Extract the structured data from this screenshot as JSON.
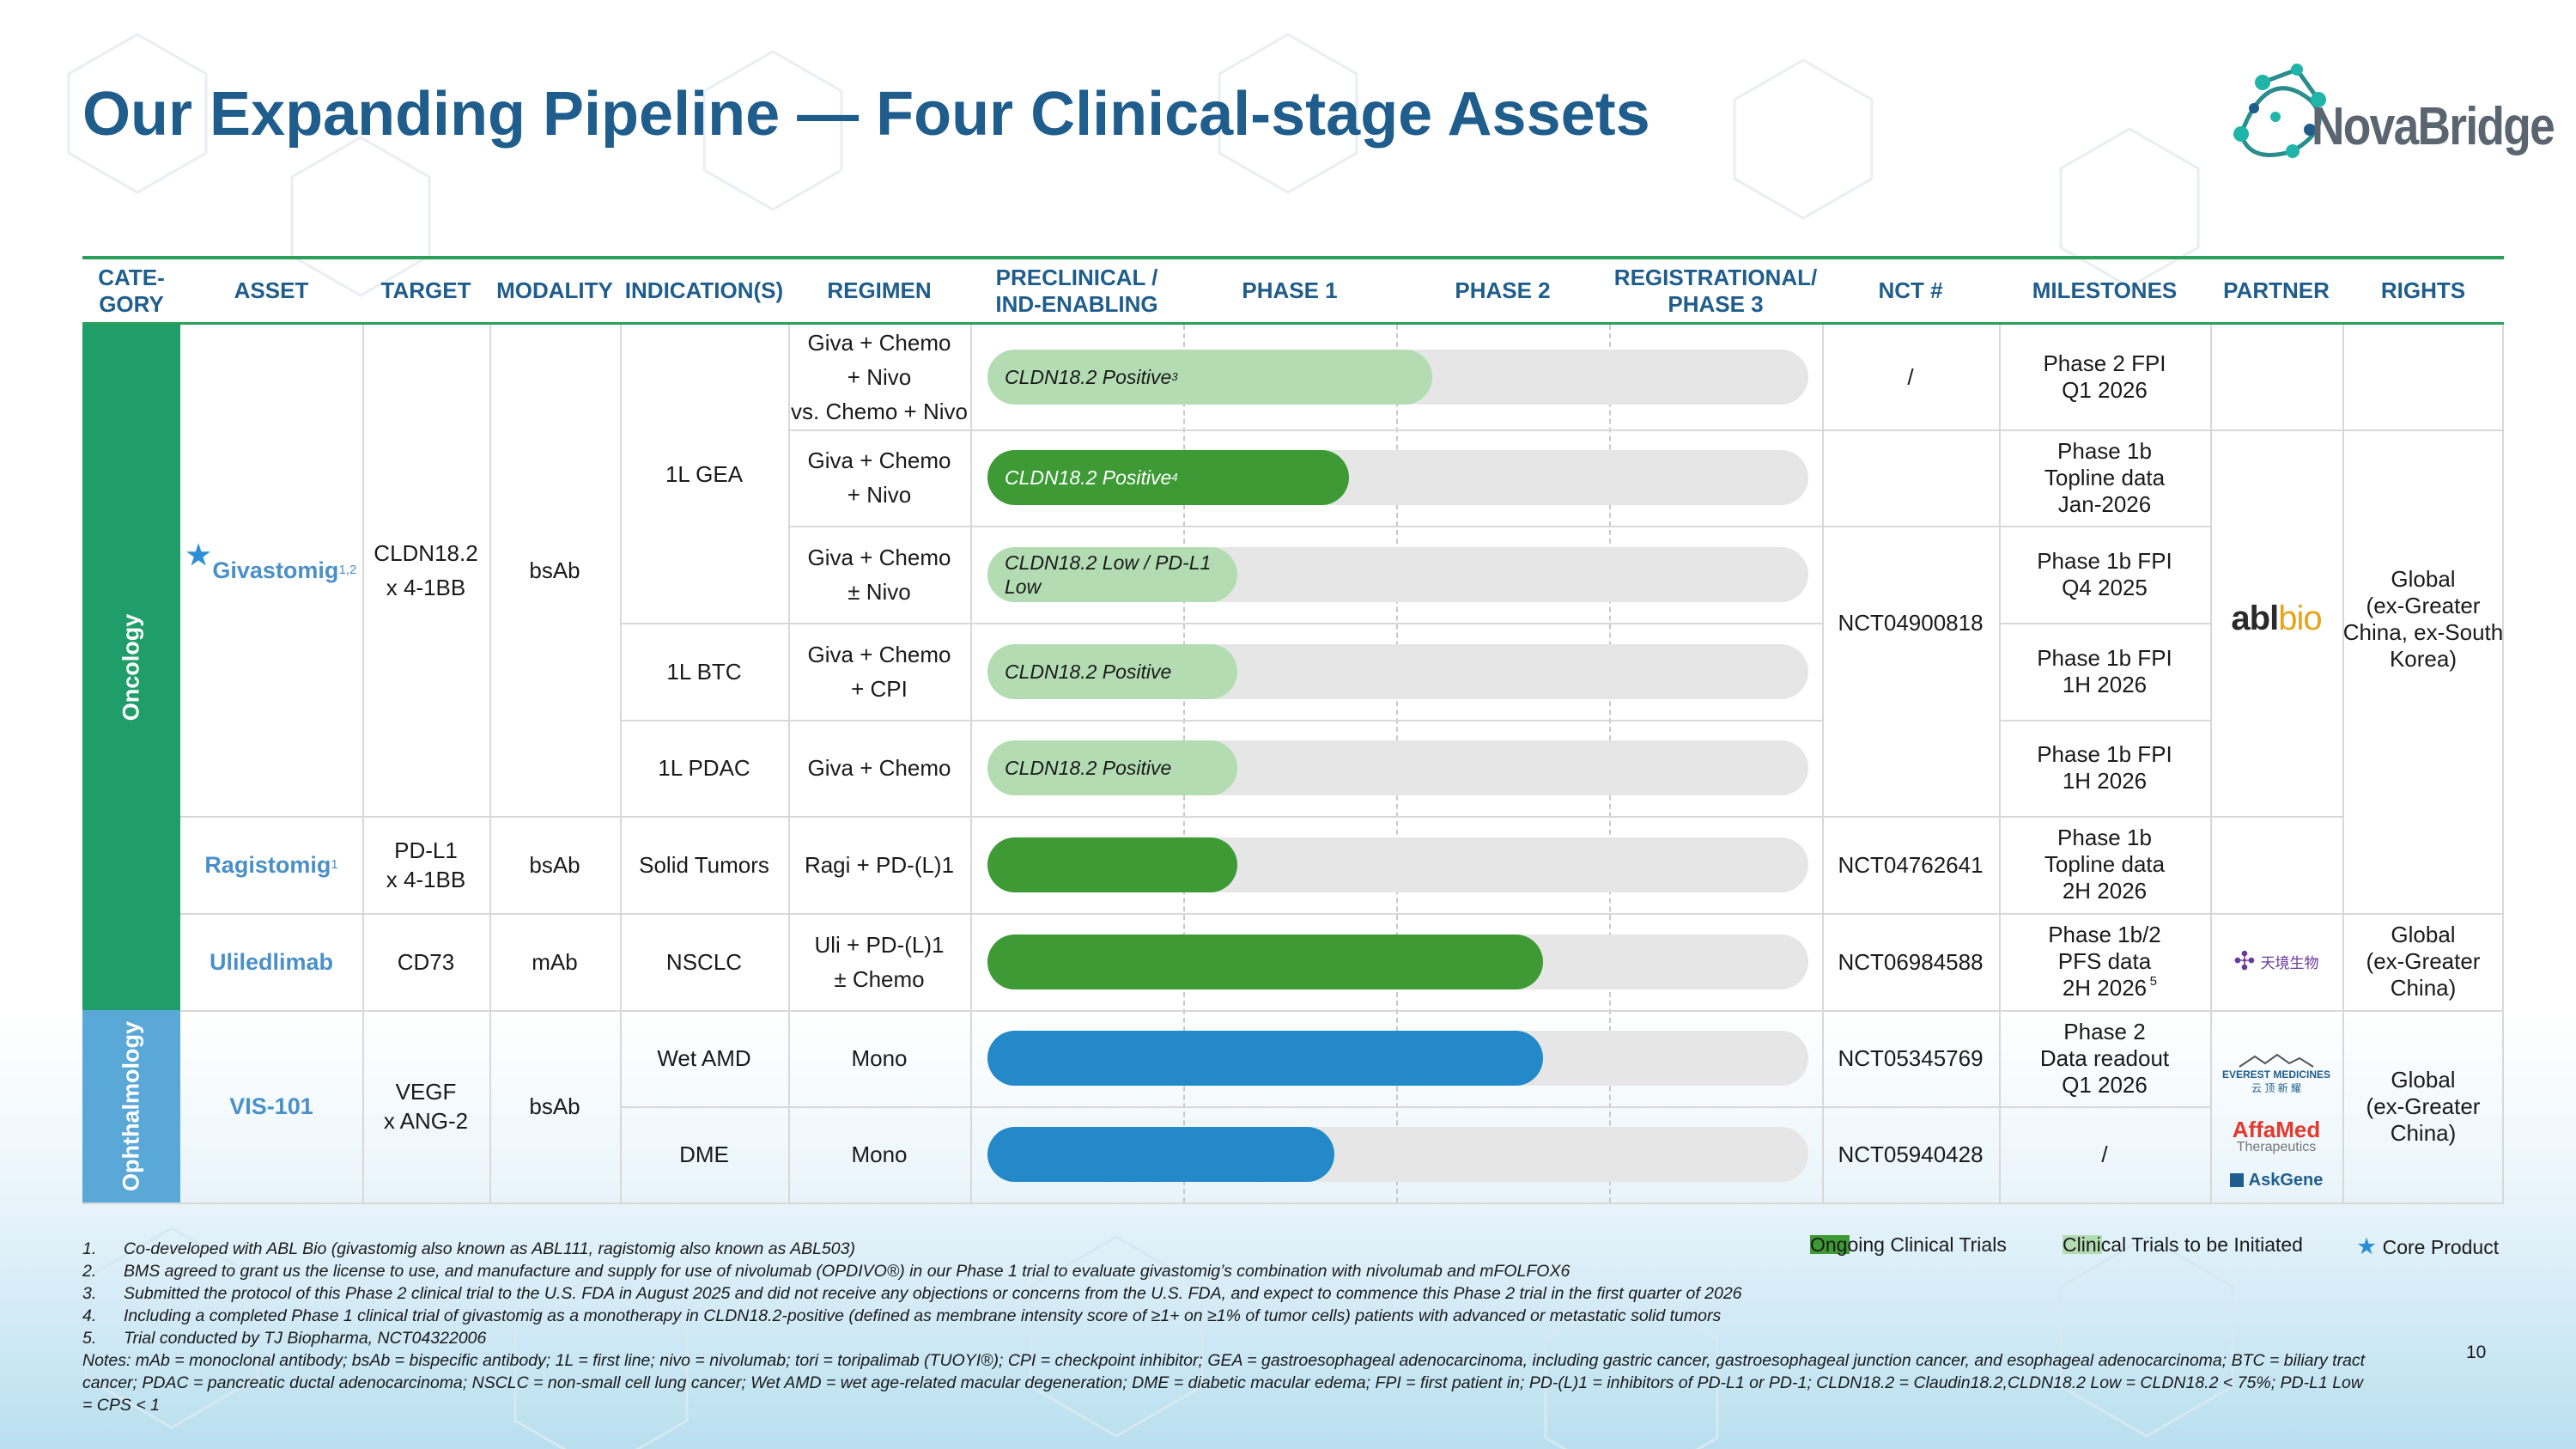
{
  "title": "Our Expanding Pipeline — Four Clinical-stage Assets",
  "logo": {
    "text": "NovaBridge"
  },
  "headers": {
    "category": "CATE-\nGORY",
    "asset": "ASSET",
    "target": "TARGET",
    "modality": "MODALITY",
    "indication": "INDICATION(S)",
    "regimen": "REGIMEN",
    "preclinical": "PRECLINICAL /\nIND-ENABLING",
    "phase1": "PHASE 1",
    "phase2": "PHASE 2",
    "phase3": "REGISTRATIONAL/\nPHASE 3",
    "nct": "NCT #",
    "milestones": "MILESTONES",
    "partner": "PARTNER",
    "rights": "RIGHTS"
  },
  "categories": {
    "oncology": "Oncology",
    "ophthalmology": "Ophthalmology"
  },
  "assets": {
    "givastomig": {
      "name": "Givastomig",
      "sup": "1,2",
      "target": "CLDN18.2\nx 4-1BB",
      "modality": "bsAb"
    },
    "ragistomig": {
      "name": "Ragistomig",
      "sup": "1",
      "target": "PD-L1\nx 4-1BB",
      "modality": "bsAb"
    },
    "uliledlimab": {
      "name": "Uliledlimab",
      "target": "CD73",
      "modality": "mAb"
    },
    "vis101": {
      "name": "VIS-101",
      "target": "VEGF\nx ANG-2",
      "modality": "bsAb"
    }
  },
  "indications": {
    "gea": "1L GEA",
    "btc": "1L BTC",
    "pdac": "1L PDAC",
    "solid": "Solid Tumors",
    "nsclc": "NSCLC",
    "wetamd": "Wet AMD",
    "dme": "DME"
  },
  "rows": [
    {
      "regimen": "Giva + Chemo\n+ Nivo\nvs. Chemo + Nivo",
      "bar_label": "CLDN18.2 Positive",
      "bar_sup": "3",
      "style": "light",
      "progress": 0.32,
      "milestone": "Phase 2 FPI\nQ1 2026"
    },
    {
      "regimen": "Giva + Chemo\n+ Nivo",
      "bar_label": "CLDN18.2 Positive",
      "bar_sup": "4",
      "style": "dark",
      "progress": 0.26,
      "milestone": "Phase 1b\nTopline data\nJan-2026"
    },
    {
      "regimen": "Giva + Chemo\n± Nivo",
      "bar_label": "CLDN18.2 Low / PD-L1\nLow",
      "bar_sup": "",
      "style": "light",
      "progress": 0.18,
      "milestone": "Phase 1b FPI\nQ4 2025"
    },
    {
      "regimen": "Giva + Chemo\n+ CPI",
      "bar_label": "CLDN18.2 Positive",
      "bar_sup": "",
      "style": "light",
      "progress": 0.18,
      "milestone": "Phase 1b FPI\n1H 2026"
    },
    {
      "regimen": "Giva + Chemo",
      "bar_label": "CLDN18.2 Positive",
      "bar_sup": "",
      "style": "light",
      "progress": 0.18,
      "milestone": "Phase 1b FPI\n1H 2026"
    },
    {
      "regimen": "Ragi + PD-(L)1",
      "bar_label": "",
      "bar_sup": "",
      "style": "dark",
      "progress": 0.18,
      "milestone": "Phase 1b\nTopline data\n2H 2026"
    },
    {
      "regimen": "Uli + PD-(L)1\n± Chemo",
      "bar_label": "",
      "bar_sup": "",
      "style": "dark",
      "progress": 0.4,
      "milestone": "Phase 1b/2\nPFS data\n2H 2026",
      "milestone_sup": "5"
    },
    {
      "regimen": "Mono",
      "bar_label": "",
      "bar_sup": "",
      "style": "blue",
      "progress": 0.4,
      "milestone": "Phase 2\nData readout\nQ1 2026"
    },
    {
      "regimen": "Mono",
      "bar_label": "",
      "bar_sup": "",
      "style": "blue",
      "progress": 0.25,
      "milestone": "/"
    }
  ],
  "nct": {
    "row1": "/",
    "givastomig": "NCT04900818",
    "ragistomig": "NCT04762641",
    "uliledlimab": "NCT06984588",
    "wetamd": "NCT05345769",
    "dme": "NCT05940428"
  },
  "partners": {
    "ablbio": "ablbio",
    "tianyin": "天境生物",
    "everest": "EVEREST MEDICINES",
    "everest_cn": "云 顶 新 耀",
    "affamed": "AffaMed",
    "affamed_sub": "Therapeutics",
    "askgene": "AskGene"
  },
  "rights": {
    "abl": "Global\n(ex-Greater\nChina, ex-South\nKorea)",
    "uli": "Global\n(ex-Greater\nChina)",
    "vis": "Global\n(ex-Greater\nChina)"
  },
  "legend": {
    "ongoing": "Ongoing Clinical Trials",
    "initiated": "Clinical Trials to be Initiated",
    "core": "Core Product"
  },
  "notes": [
    {
      "num": "1.",
      "text": "Co-developed with ABL Bio (givastomig also known as ABL111, ragistomig also known as ABL503)"
    },
    {
      "num": "2.",
      "text": "BMS agreed to grant us the license to use, and manufacture and supply for use of nivolumab (OPDIVO®) in our Phase 1 trial  to evaluate givastomig’s combination with nivolumab and mFOLFOX6"
    },
    {
      "num": "3.",
      "text": "Submitted the protocol of this Phase 2 clinical trial to the U.S. FDA in August 2025 and did not receive any objections or concerns from the U.S. FDA, and expect to commence this Phase 2 trial in the first quarter of 2026"
    },
    {
      "num": "4.",
      "text": "Including a completed Phase 1 clinical trial of givastomig as a monotherapy in CLDN18.2-positive (defined as membrane intensity score of ≥1+ on ≥1% of tumor cells) patients with advanced or metastatic solid tumors"
    },
    {
      "num": "5.",
      "text": "Trial conducted by TJ Biopharma, NCT04322006"
    }
  ],
  "abbreviations": "Notes: mAb = monoclonal antibody; bsAb = bispecific antibody; 1L = first line; nivo = nivolumab; tori = toripalimab (TUOYI®); CPI = checkpoint inhibitor; GEA = gastroesophageal adenocarcinoma, including gastric cancer, gastroesophageal junction cancer, and esophageal adenocarcinoma; BTC = biliary tract cancer; PDAC = pancreatic ductal adenocarcinoma; NSCLC = non-small cell lung cancer; Wet AMD = wet age-related macular degeneration; DME = diabetic macular edema; FPI = first patient in; PD-(L)1 = inhibitors of PD-L1 or PD-1; CLDN18.2 = Claudin18.2,CLDN18.2 Low = CLDN18.2 < 75%; PD-L1 Low = CPS < 1",
  "page_number": "10",
  "colors": {
    "title": "#1f5d8c",
    "accent_green": "#2ca05a",
    "oncology": "#1f9e6a",
    "ophthalmology": "#5aa8d8",
    "bar_dark": "#3d9a35",
    "bar_light": "#b3dcb3",
    "bar_blue": "#2389c9"
  }
}
